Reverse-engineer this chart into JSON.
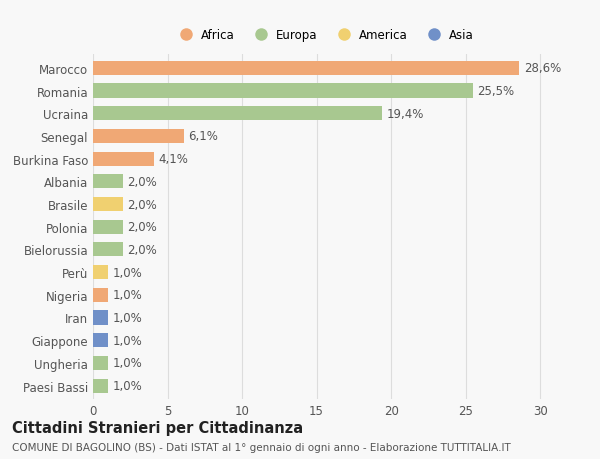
{
  "countries": [
    "Marocco",
    "Romania",
    "Ucraina",
    "Senegal",
    "Burkina Faso",
    "Albania",
    "Brasile",
    "Polonia",
    "Bielorussia",
    "Perù",
    "Nigeria",
    "Iran",
    "Giappone",
    "Ungheria",
    "Paesi Bassi"
  ],
  "values": [
    28.6,
    25.5,
    19.4,
    6.1,
    4.1,
    2.0,
    2.0,
    2.0,
    2.0,
    1.0,
    1.0,
    1.0,
    1.0,
    1.0,
    1.0
  ],
  "labels": [
    "28,6%",
    "25,5%",
    "19,4%",
    "6,1%",
    "4,1%",
    "2,0%",
    "2,0%",
    "2,0%",
    "2,0%",
    "1,0%",
    "1,0%",
    "1,0%",
    "1,0%",
    "1,0%",
    "1,0%"
  ],
  "continents": [
    "Africa",
    "Europa",
    "Europa",
    "Africa",
    "Africa",
    "Europa",
    "America",
    "Europa",
    "Europa",
    "America",
    "Africa",
    "Asia",
    "Asia",
    "Europa",
    "Europa"
  ],
  "continent_colors": {
    "Africa": "#f0a875",
    "Europa": "#a8c890",
    "America": "#f0d070",
    "Asia": "#7090c8"
  },
  "legend_order": [
    "Africa",
    "Europa",
    "America",
    "Asia"
  ],
  "title": "Cittadini Stranieri per Cittadinanza",
  "subtitle": "COMUNE DI BAGOLINO (BS) - Dati ISTAT al 1° gennaio di ogni anno - Elaborazione TUTTITALIA.IT",
  "xlim": [
    0,
    31
  ],
  "xticks": [
    0,
    5,
    10,
    15,
    20,
    25,
    30
  ],
  "bg_color": "#f8f8f8",
  "grid_color": "#dddddd",
  "bar_height": 0.62,
  "label_fontsize": 8.5,
  "tick_fontsize": 8.5,
  "title_fontsize": 10.5,
  "subtitle_fontsize": 7.5
}
